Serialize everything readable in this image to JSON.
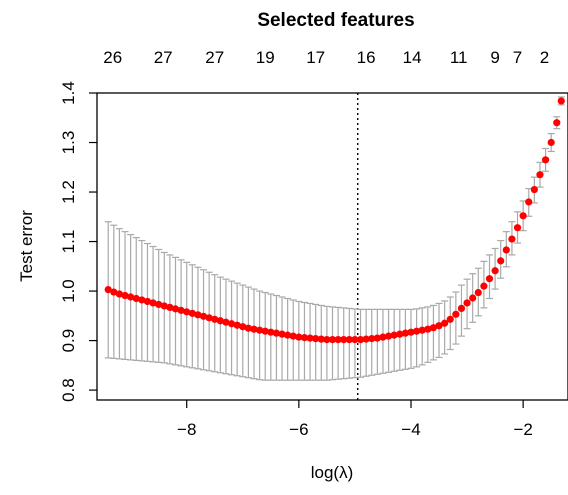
{
  "chart_data": {
    "type": "scatter",
    "subtitle": "Selected features",
    "xlabel": "log(λ)",
    "ylabel": "Test error",
    "xlim": [
      -9.6,
      -1.2
    ],
    "ylim": [
      0.78,
      1.4
    ],
    "x_ticks": [
      -8,
      -6,
      -4,
      -2
    ],
    "x_tick_labels": [
      "−8",
      "−6",
      "−4",
      "−2"
    ],
    "y_ticks": [
      0.8,
      0.9,
      1.0,
      1.1,
      1.2,
      1.3,
      1.4
    ],
    "y_tick_labels": [
      "0.8",
      "0.9",
      "1.0",
      "1.1",
      "1.2",
      "1.3",
      "1.4"
    ],
    "top_axis": {
      "x": [
        -9.32,
        -8.42,
        -7.5,
        -6.6,
        -5.7,
        -4.8,
        -3.98,
        -3.15,
        -2.5,
        -2.1,
        -1.62
      ],
      "labels": [
        "26",
        "27",
        "27",
        "19",
        "17",
        "16",
        "14",
        "11",
        "9",
        "7",
        "2"
      ]
    },
    "vline": {
      "x": -4.95,
      "style": "dotted"
    },
    "grid": false,
    "legend": "none",
    "colors": {
      "point": "#ff0000",
      "errorbar": "#a9a9a9",
      "vline": "#000000"
    },
    "points": {
      "x": [
        -9.4,
        -9.3,
        -9.2,
        -9.1,
        -9.0,
        -8.9,
        -8.8,
        -8.7,
        -8.6,
        -8.5,
        -8.4,
        -8.3,
        -8.2,
        -8.1,
        -8.0,
        -7.9,
        -7.8,
        -7.7,
        -7.6,
        -7.5,
        -7.4,
        -7.3,
        -7.2,
        -7.1,
        -7.0,
        -6.9,
        -6.8,
        -6.7,
        -6.6,
        -6.5,
        -6.4,
        -6.3,
        -6.2,
        -6.1,
        -6.0,
        -5.9,
        -5.8,
        -5.7,
        -5.6,
        -5.5,
        -5.4,
        -5.3,
        -5.2,
        -5.1,
        -5.0,
        -4.9,
        -4.8,
        -4.7,
        -4.6,
        -4.5,
        -4.4,
        -4.3,
        -4.2,
        -4.1,
        -4.0,
        -3.9,
        -3.8,
        -3.7,
        -3.6,
        -3.5,
        -3.4,
        -3.3,
        -3.2,
        -3.1,
        -3.0,
        -2.9,
        -2.8,
        -2.7,
        -2.6,
        -2.5,
        -2.4,
        -2.3,
        -2.2,
        -2.1,
        -2.0,
        -1.9,
        -1.8,
        -1.7,
        -1.6,
        -1.5,
        -1.4
      ],
      "y": [
        1.003,
        0.998,
        0.994,
        0.991,
        0.988,
        0.985,
        0.982,
        0.979,
        0.976,
        0.973,
        0.97,
        0.967,
        0.964,
        0.961,
        0.958,
        0.955,
        0.952,
        0.949,
        0.946,
        0.943,
        0.94,
        0.937,
        0.934,
        0.931,
        0.928,
        0.925,
        0.923,
        0.921,
        0.919,
        0.917,
        0.915,
        0.913,
        0.911,
        0.909,
        0.907,
        0.906,
        0.905,
        0.904,
        0.903,
        0.902,
        0.902,
        0.902,
        0.902,
        0.902,
        0.902,
        0.902,
        0.903,
        0.904,
        0.905,
        0.907,
        0.909,
        0.911,
        0.913,
        0.915,
        0.917,
        0.919,
        0.921,
        0.923,
        0.926,
        0.93,
        0.935,
        0.943,
        0.953,
        0.965,
        0.976,
        0.986,
        0.997,
        1.01,
        1.025,
        1.041,
        1.061,
        1.083,
        1.105,
        1.128,
        1.152,
        1.18,
        1.205,
        1.235,
        1.265,
        1.3,
        1.34
      ],
      "lower": [
        0.865,
        0.864,
        0.863,
        0.862,
        0.861,
        0.86,
        0.859,
        0.858,
        0.857,
        0.856,
        0.855,
        0.853,
        0.851,
        0.849,
        0.847,
        0.845,
        0.843,
        0.841,
        0.839,
        0.837,
        0.835,
        0.833,
        0.831,
        0.829,
        0.827,
        0.825,
        0.823,
        0.821,
        0.82,
        0.82,
        0.82,
        0.82,
        0.82,
        0.82,
        0.82,
        0.82,
        0.82,
        0.82,
        0.82,
        0.82,
        0.821,
        0.822,
        0.823,
        0.824,
        0.825,
        0.826,
        0.828,
        0.83,
        0.832,
        0.834,
        0.836,
        0.838,
        0.84,
        0.842,
        0.844,
        0.847,
        0.851,
        0.856,
        0.861,
        0.866,
        0.873,
        0.882,
        0.893,
        0.909,
        0.924,
        0.937,
        0.95,
        0.966,
        0.985,
        1.004,
        1.026,
        1.049,
        1.073,
        1.097,
        1.122,
        1.151,
        1.178,
        1.21,
        1.242,
        1.282,
        1.328
      ],
      "upper": [
        1.14,
        1.133,
        1.126,
        1.12,
        1.114,
        1.108,
        1.102,
        1.096,
        1.09,
        1.084,
        1.078,
        1.073,
        1.068,
        1.063,
        1.058,
        1.053,
        1.048,
        1.043,
        1.038,
        1.033,
        1.028,
        1.024,
        1.02,
        1.016,
        1.012,
        1.008,
        1.004,
        1.0,
        0.997,
        0.994,
        0.991,
        0.988,
        0.985,
        0.982,
        0.979,
        0.977,
        0.975,
        0.973,
        0.971,
        0.969,
        0.968,
        0.967,
        0.966,
        0.965,
        0.964,
        0.963,
        0.963,
        0.963,
        0.963,
        0.963,
        0.963,
        0.963,
        0.963,
        0.963,
        0.963,
        0.964,
        0.966,
        0.968,
        0.971,
        0.975,
        0.98,
        0.988,
        0.998,
        1.012,
        1.024,
        1.035,
        1.046,
        1.06,
        1.073,
        1.086,
        1.102,
        1.12,
        1.14,
        1.16,
        1.182,
        1.207,
        1.23,
        1.26,
        1.288,
        1.318,
        1.352
      ]
    },
    "last_point": {
      "x": -1.32,
      "y": 1.384,
      "lower": 1.376,
      "upper": 1.392
    }
  }
}
